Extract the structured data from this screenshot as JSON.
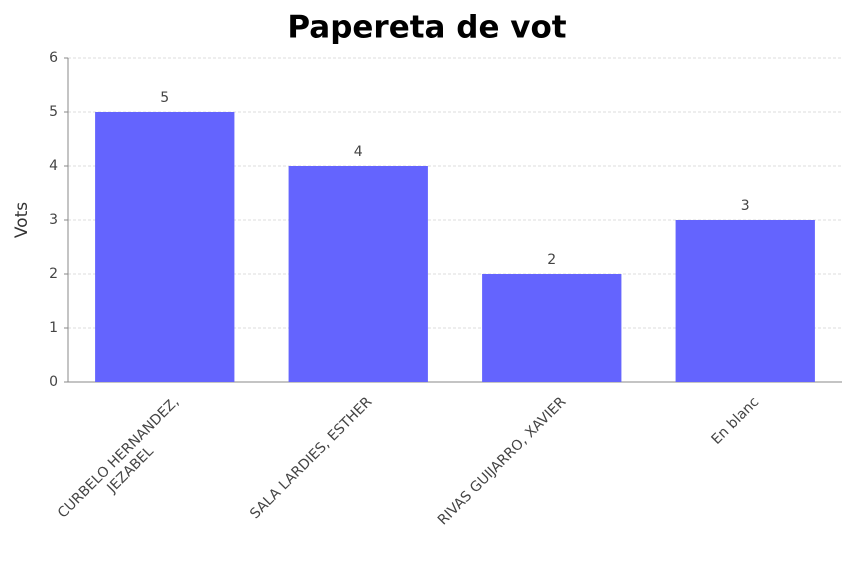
{
  "chart_data": {
    "type": "bar",
    "title": "Papereta de vot",
    "y_label": "Vots",
    "categories": [
      "CURBELO HERNANDEZ,\nJEZABEL",
      "SALA LARDIES, ESTHER",
      "RIVAS GUIJARRO, XAVIER",
      "En blanc"
    ],
    "values": [
      5,
      4,
      2,
      3
    ],
    "color": "#6464fe",
    "ylim": [
      0,
      6
    ],
    "yticks": [
      0,
      1,
      2,
      3,
      4,
      5,
      6
    ],
    "grid": true
  }
}
